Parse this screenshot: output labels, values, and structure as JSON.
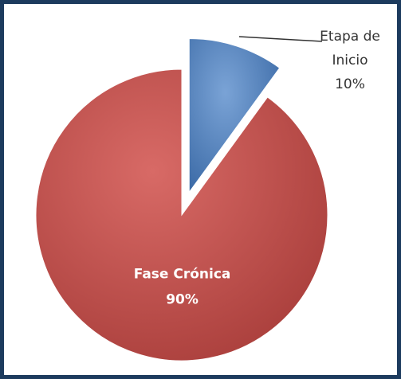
{
  "chart_data": {
    "type": "pie",
    "categories": [
      "Etapa de Inicio",
      "Fase Crónica"
    ],
    "values": [
      10,
      90
    ],
    "value_labels": [
      "10%",
      "90%"
    ],
    "colors": [
      "#4f81bd",
      "#c0504d"
    ]
  }
}
